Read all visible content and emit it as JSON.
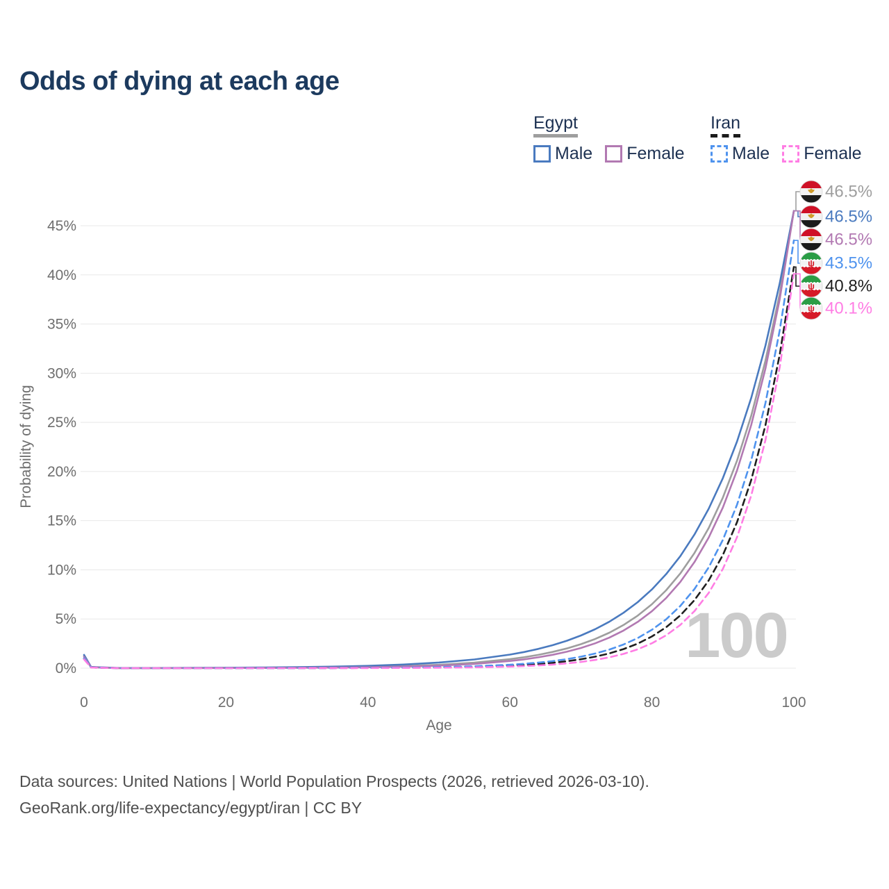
{
  "title": "Odds of dying at each age",
  "watermark": "100",
  "legend": {
    "groups": [
      {
        "name": "Egypt",
        "line_style": "solid",
        "items": [
          {
            "label": "Male",
            "color": "#4a7abf"
          },
          {
            "label": "Female",
            "color": "#b279b2"
          }
        ]
      },
      {
        "name": "Iran",
        "line_style": "dashed",
        "items": [
          {
            "label": "Male",
            "color": "#4f93ee"
          },
          {
            "label": "Female",
            "color": "#ff7de4"
          }
        ]
      }
    ]
  },
  "chart_data": {
    "type": "line",
    "title": "Odds of dying at each age",
    "xlabel": "Age",
    "ylabel": "Probability of dying",
    "xlim": [
      0,
      100
    ],
    "ylim": [
      0,
      47.5
    ],
    "grid": "horizontal-only",
    "legend_position": "top-right",
    "xticks": [
      0,
      20,
      40,
      60,
      80,
      100
    ],
    "yticks": [
      0,
      5,
      10,
      15,
      20,
      25,
      30,
      35,
      40,
      45
    ],
    "y_unit": "%",
    "x": [
      0,
      1,
      5,
      10,
      15,
      20,
      25,
      30,
      35,
      40,
      45,
      50,
      55,
      60,
      62,
      64,
      66,
      68,
      70,
      72,
      74,
      76,
      78,
      80,
      82,
      84,
      86,
      88,
      90,
      92,
      94,
      96,
      98,
      100
    ],
    "series": [
      {
        "id": "egypt-total",
        "name": "Egypt (both sexes)",
        "country": "Egypt",
        "sex": "both",
        "color": "#9e9e9e",
        "dashed": false,
        "end_label": "46.5%",
        "values": [
          1.25,
          0.1,
          0.004,
          0.007,
          0.011,
          0.018,
          0.029,
          0.048,
          0.078,
          0.128,
          0.209,
          0.341,
          0.558,
          0.912,
          1.11,
          1.351,
          1.644,
          2.001,
          2.435,
          2.963,
          3.606,
          4.388,
          5.34,
          6.499,
          7.909,
          9.625,
          11.71,
          14.25,
          17.35,
          21.11,
          25.69,
          31.27,
          38.05,
          46.5
        ]
      },
      {
        "id": "egypt-male",
        "name": "Egypt male",
        "country": "Egypt",
        "sex": "male",
        "color": "#4a7abf",
        "dashed": false,
        "end_label": "46.5%",
        "values": [
          1.35,
          0.12,
          0.011,
          0.017,
          0.026,
          0.041,
          0.063,
          0.098,
          0.152,
          0.236,
          0.367,
          0.57,
          0.885,
          1.374,
          1.639,
          1.955,
          2.331,
          2.781,
          3.317,
          3.956,
          4.718,
          5.628,
          6.713,
          8.007,
          9.55,
          11.39,
          13.59,
          16.21,
          19.33,
          23.06,
          27.5,
          32.8,
          39.12,
          46.5
        ]
      },
      {
        "id": "egypt-female",
        "name": "Egypt female",
        "country": "Egypt",
        "sex": "female",
        "color": "#b279b2",
        "dashed": false,
        "end_label": "46.5%",
        "values": [
          1.15,
          0.09,
          0.002,
          0.004,
          0.007,
          0.011,
          0.019,
          0.032,
          0.054,
          0.091,
          0.153,
          0.257,
          0.432,
          0.726,
          0.893,
          1.099,
          1.353,
          1.665,
          2.049,
          2.522,
          3.104,
          3.82,
          4.702,
          5.787,
          7.122,
          8.766,
          10.79,
          13.28,
          16.34,
          20.11,
          24.75,
          30.47,
          37.5,
          46.5
        ]
      },
      {
        "id": "iran-total",
        "name": "Iran (both sexes)",
        "country": "Iran",
        "sex": "both",
        "color": "#1f1f1f",
        "dashed": true,
        "end_label": "40.8%",
        "values": [
          0.95,
          0.065,
          0.0002,
          0.0004,
          0.001,
          0.002,
          0.003,
          0.006,
          0.01,
          0.02,
          0.037,
          0.071,
          0.133,
          0.252,
          0.326,
          0.42,
          0.542,
          0.699,
          0.902,
          1.163,
          1.5,
          1.935,
          2.497,
          3.221,
          4.155,
          5.36,
          6.915,
          8.921,
          11.51,
          14.85,
          19.15,
          24.71,
          31.87,
          40.8
        ]
      },
      {
        "id": "iran-male",
        "name": "Iran male",
        "country": "Iran",
        "sex": "male",
        "color": "#4f93ee",
        "dashed": true,
        "end_label": "43.5%",
        "values": [
          1.0,
          0.07,
          0.0005,
          0.001,
          0.002,
          0.003,
          0.005,
          0.009,
          0.017,
          0.031,
          0.057,
          0.104,
          0.19,
          0.347,
          0.442,
          0.563,
          0.717,
          0.913,
          1.163,
          1.481,
          1.886,
          2.402,
          3.059,
          3.896,
          4.962,
          6.319,
          8.047,
          10.25,
          13.05,
          16.62,
          21.17,
          26.96,
          34.33,
          43.5
        ]
      },
      {
        "id": "iran-female",
        "name": "Iran female",
        "country": "Iran",
        "sex": "female",
        "color": "#ff7de4",
        "dashed": true,
        "end_label": "40.1%",
        "values": [
          0.9,
          0.06,
          0.0001,
          0.0002,
          0.0003,
          0.0006,
          0.001,
          0.002,
          0.005,
          0.01,
          0.02,
          0.039,
          0.079,
          0.158,
          0.209,
          0.275,
          0.363,
          0.479,
          0.632,
          0.834,
          1.1,
          1.451,
          1.914,
          2.526,
          3.332,
          4.397,
          5.801,
          7.653,
          10.097,
          13.321,
          17.575,
          23.187,
          30.591,
          40.1
        ]
      }
    ]
  },
  "footer": {
    "line1": "Data sources: United Nations | World Population Prospects (2026, retrieved 2026-03-10).",
    "line2": "GeoRank.org/life-expectancy/egypt/iran | CC BY"
  }
}
